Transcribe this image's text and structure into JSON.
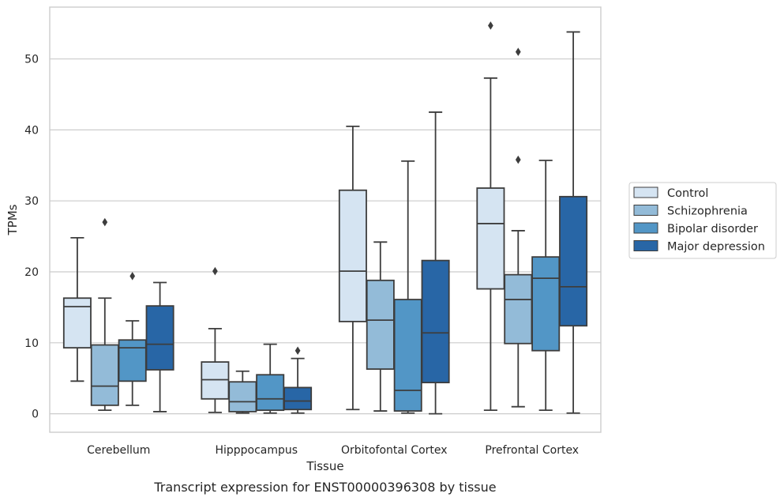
{
  "chart_data": {
    "type": "box",
    "caption": "Transcript expression for ENST00000396308 by tissue",
    "xlabel": "Tissue",
    "ylabel": "TPMs",
    "ylim": [
      -2.6,
      57.3
    ],
    "yticks": [
      0,
      10,
      20,
      30,
      40,
      50
    ],
    "grid": true,
    "legend_position": "right",
    "categories": [
      "Cerebellum",
      "Hipppocampus",
      "Orbitofontal Cortex",
      "Prefrontal Cortex"
    ],
    "series": [
      {
        "name": "Control",
        "color": "#d5e4f2",
        "boxes": [
          {
            "whisker_low": 4.6,
            "q1": 9.3,
            "median": 15.1,
            "q3": 16.3,
            "whisker_high": 24.8,
            "outliers": []
          },
          {
            "whisker_low": 0.2,
            "q1": 2.1,
            "median": 4.8,
            "q3": 7.3,
            "whisker_high": 12.0,
            "outliers": [
              20.1
            ]
          },
          {
            "whisker_low": 0.6,
            "q1": 13.0,
            "median": 20.1,
            "q3": 31.5,
            "whisker_high": 40.5,
            "outliers": []
          },
          {
            "whisker_low": 0.5,
            "q1": 17.6,
            "median": 26.8,
            "q3": 31.8,
            "whisker_high": 47.3,
            "outliers": [
              54.7
            ]
          }
        ]
      },
      {
        "name": "Schizophrenia",
        "color": "#93bbd8",
        "boxes": [
          {
            "whisker_low": 0.5,
            "q1": 1.2,
            "median": 3.9,
            "q3": 9.7,
            "whisker_high": 16.3,
            "outliers": [
              27.0
            ]
          },
          {
            "whisker_low": 0.1,
            "q1": 0.3,
            "median": 1.7,
            "q3": 4.5,
            "whisker_high": 6.0,
            "outliers": []
          },
          {
            "whisker_low": 0.4,
            "q1": 6.3,
            "median": 13.2,
            "q3": 18.8,
            "whisker_high": 24.2,
            "outliers": []
          },
          {
            "whisker_low": 1.0,
            "q1": 9.9,
            "median": 16.1,
            "q3": 19.6,
            "whisker_high": 25.8,
            "outliers": [
              35.8,
              51.0
            ]
          }
        ]
      },
      {
        "name": "Bipolar disorder",
        "color": "#5296c6",
        "boxes": [
          {
            "whisker_low": 1.2,
            "q1": 4.6,
            "median": 9.3,
            "q3": 10.4,
            "whisker_high": 13.1,
            "outliers": [
              19.4
            ]
          },
          {
            "whisker_low": 0.1,
            "q1": 0.5,
            "median": 2.1,
            "q3": 5.5,
            "whisker_high": 9.8,
            "outliers": []
          },
          {
            "whisker_low": 0.1,
            "q1": 0.4,
            "median": 3.3,
            "q3": 16.1,
            "whisker_high": 35.6,
            "outliers": []
          },
          {
            "whisker_low": 0.5,
            "q1": 8.9,
            "median": 19.1,
            "q3": 22.1,
            "whisker_high": 35.7,
            "outliers": []
          }
        ]
      },
      {
        "name": "Major depression",
        "color": "#2866a6",
        "boxes": [
          {
            "whisker_low": 0.3,
            "q1": 6.2,
            "median": 9.8,
            "q3": 15.2,
            "whisker_high": 18.5,
            "outliers": []
          },
          {
            "whisker_low": 0.1,
            "q1": 0.6,
            "median": 1.8,
            "q3": 3.7,
            "whisker_high": 7.8,
            "outliers": [
              8.9
            ]
          },
          {
            "whisker_low": 0.0,
            "q1": 4.4,
            "median": 11.4,
            "q3": 21.6,
            "whisker_high": 42.5,
            "outliers": []
          },
          {
            "whisker_low": 0.1,
            "q1": 12.4,
            "median": 17.9,
            "q3": 30.6,
            "whisker_high": 53.8,
            "outliers": []
          }
        ]
      }
    ]
  }
}
